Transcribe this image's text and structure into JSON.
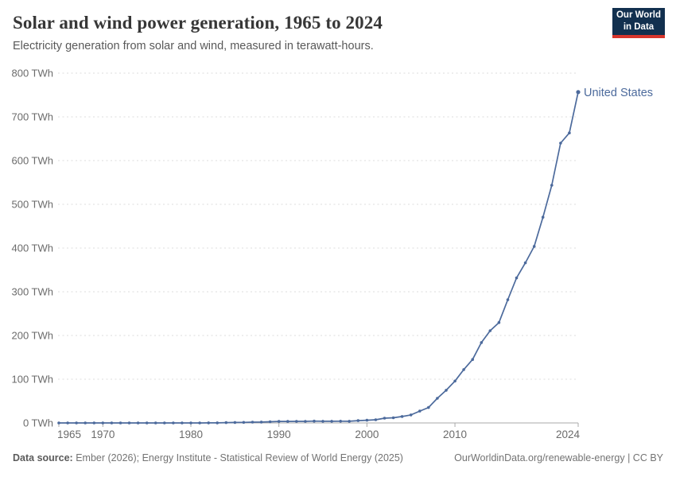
{
  "header": {
    "title": "Solar and wind power generation, 1965 to 2024",
    "subtitle": "Electricity generation from solar and wind, measured in terawatt-hours.",
    "logo": {
      "line1": "Our World",
      "line2": "in Data"
    }
  },
  "chart_data": {
    "type": "line",
    "title": "Solar and wind power generation, 1965 to 2024",
    "xlabel": "",
    "ylabel": "",
    "xlim": [
      1965,
      2024
    ],
    "ylim": [
      0,
      800
    ],
    "grid": "horizontal-dashed",
    "legend_position": "end-of-line-label",
    "x_ticks": [
      1965,
      1970,
      1980,
      1990,
      2000,
      2010,
      2024
    ],
    "y_ticks": [
      0,
      100,
      200,
      300,
      400,
      500,
      600,
      700,
      800
    ],
    "y_tick_suffix": " TWh",
    "series": [
      {
        "name": "United States",
        "color": "#4c6a9c",
        "x": [
          1965,
          1966,
          1967,
          1968,
          1969,
          1970,
          1971,
          1972,
          1973,
          1974,
          1975,
          1976,
          1977,
          1978,
          1979,
          1980,
          1981,
          1982,
          1983,
          1984,
          1985,
          1986,
          1987,
          1988,
          1989,
          1990,
          1991,
          1992,
          1993,
          1994,
          1995,
          1996,
          1997,
          1998,
          1999,
          2000,
          2001,
          2002,
          2003,
          2004,
          2005,
          2006,
          2007,
          2008,
          2009,
          2010,
          2011,
          2012,
          2013,
          2014,
          2015,
          2016,
          2017,
          2018,
          2019,
          2020,
          2021,
          2022,
          2023,
          2024
        ],
        "values": [
          0,
          0,
          0,
          0,
          0,
          0,
          0,
          0,
          0,
          0,
          0,
          0,
          0,
          0,
          0,
          0.01,
          0.03,
          0.1,
          0.25,
          0.7,
          1.1,
          1.3,
          1.9,
          2.0,
          2.8,
          3.4,
          3.5,
          3.6,
          3.7,
          4.1,
          3.9,
          3.9,
          4.0,
          3.9,
          5.2,
          6.2,
          7.3,
          11.0,
          11.8,
          14.8,
          18.4,
          27.1,
          35.2,
          56.3,
          74.8,
          95.8,
          122.0,
          145.1,
          183.8,
          210.9,
          229.7,
          281.9,
          331.6,
          366.1,
          403.8,
          470.5,
          543.6,
          640.0,
          663.3,
          756.7
        ]
      }
    ]
  },
  "footer": {
    "source_label": "Data source:",
    "source_text": " Ember (2026); Energy Institute - Statistical Review of World Energy (2025)",
    "link_text": "OurWorldinData.org/renewable-energy | CC BY"
  },
  "colors": {
    "series": "#4c6a9c",
    "grid": "#dcdcdc",
    "axis": "#a8a8a8",
    "tick_label": "#6b6b6b",
    "logo_bg": "#12304f",
    "logo_accent": "#d7352c"
  }
}
